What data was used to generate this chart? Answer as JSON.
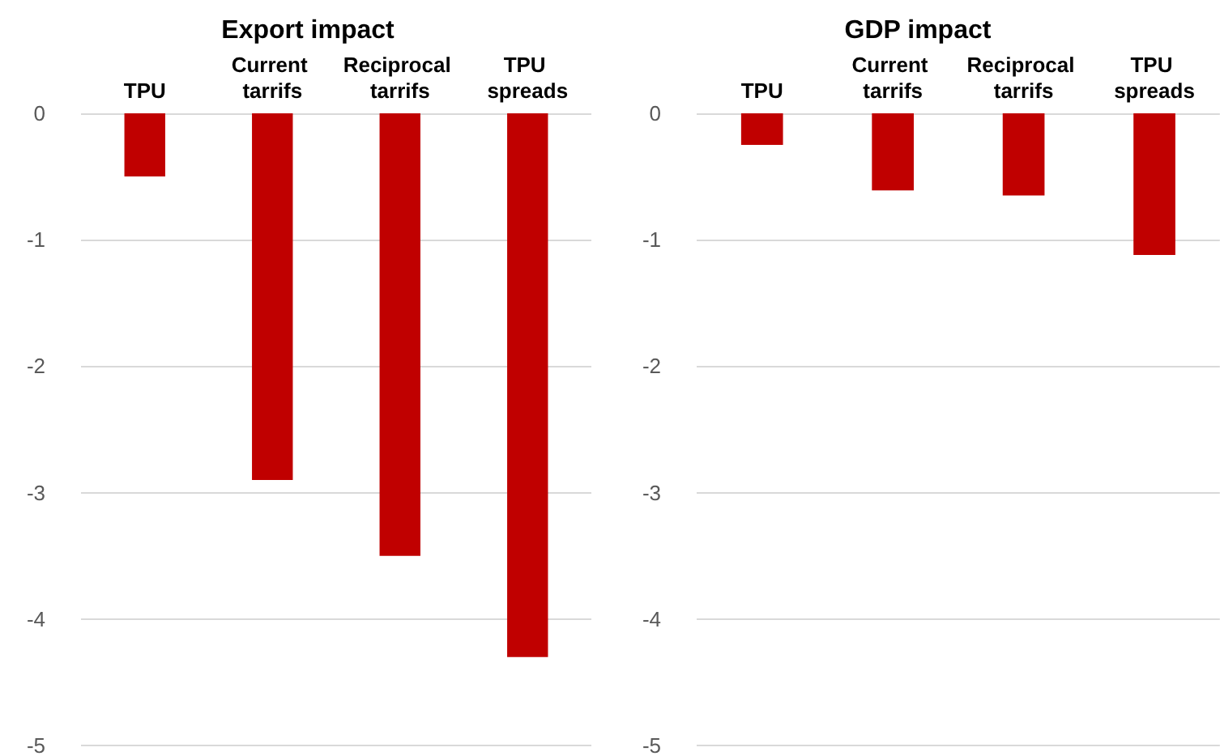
{
  "chart_data": [
    {
      "type": "bar",
      "title": "Export impact",
      "categories": [
        "TPU",
        "Current tarrifs",
        "Reciprocal tarrifs",
        "TPU spreads"
      ],
      "values": [
        -0.5,
        -2.9,
        -3.5,
        -4.3
      ],
      "color": "#c00000",
      "ylim": [
        -5,
        0
      ],
      "yticks": [
        -5,
        -4,
        -3,
        -2,
        -1,
        0
      ],
      "grid": "y"
    },
    {
      "type": "bar",
      "title": "GDP impact",
      "categories": [
        "TPU",
        "Current tarrifs",
        "Reciprocal tarrifs",
        "TPU spreads"
      ],
      "values": [
        -0.25,
        -0.61,
        -0.65,
        -1.12
      ],
      "color": "#c00000",
      "ylim": [
        -5,
        0
      ],
      "yticks": [
        -5,
        -4,
        -3,
        -2,
        -1,
        0
      ],
      "grid": "y"
    }
  ]
}
